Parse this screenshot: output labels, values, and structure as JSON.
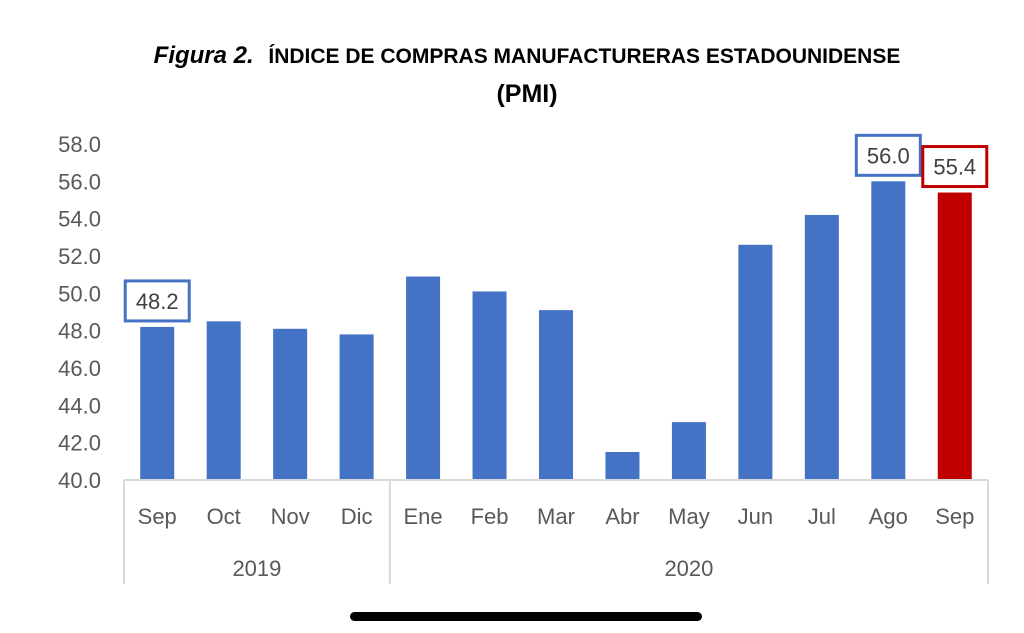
{
  "title": {
    "prefix": "Figura 2.",
    "main": "Índice de compras manufactureras estadounidense",
    "line2": "(PMI)"
  },
  "colors": {
    "bar": "#4472C4",
    "highlight_bar": "#C00000",
    "axis": "#D9D9D9",
    "tick_text": "#595959",
    "callout_blue": "#4472C4",
    "callout_red": "#C00000"
  },
  "chart_data": {
    "type": "bar",
    "title": "Figura 2. Índice de compras manufactureras estadounidense (PMI)",
    "xlabel": "",
    "ylabel": "",
    "ylim": [
      40.0,
      58.0
    ],
    "yticks": [
      "40.0",
      "42.0",
      "44.0",
      "46.0",
      "48.0",
      "50.0",
      "52.0",
      "54.0",
      "56.0",
      "58.0"
    ],
    "grid": false,
    "legend": "none",
    "categories": [
      "Sep",
      "Oct",
      "Nov",
      "Dic",
      "Ene",
      "Feb",
      "Mar",
      "Abr",
      "May",
      "Jun",
      "Jul",
      "Ago",
      "Sep"
    ],
    "groups": [
      {
        "label": "2019",
        "count": 4
      },
      {
        "label": "2020",
        "count": 9
      }
    ],
    "values": [
      48.2,
      48.5,
      48.1,
      47.8,
      50.9,
      50.1,
      49.1,
      41.5,
      43.1,
      52.6,
      54.2,
      56.0,
      55.4
    ],
    "highlight_index": 12,
    "data_labels": [
      {
        "index": 0,
        "text": "48.2",
        "style": "blue"
      },
      {
        "index": 11,
        "text": "56.0",
        "style": "blue"
      },
      {
        "index": 12,
        "text": "55.4",
        "style": "red"
      }
    ]
  }
}
